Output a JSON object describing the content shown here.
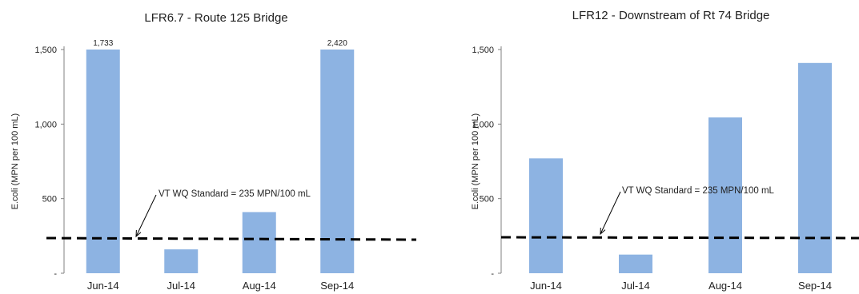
{
  "chart_data": [
    {
      "type": "bar",
      "title": "LFR6.7 - Route 125 Bridge",
      "ylabel": "E.coli (MPN per 100 mL)",
      "categories": [
        "Jun-14",
        "Jul-14",
        "Aug-14",
        "Sep-14"
      ],
      "values": [
        1733,
        160,
        410,
        2420
      ],
      "data_labels": [
        "1,733",
        "",
        "",
        "2,420"
      ],
      "ylim": [
        0,
        1500
      ],
      "yticks": [
        0,
        500,
        1000,
        1500
      ],
      "ytick_labels": [
        "-",
        "500",
        "1,000",
        "1,500"
      ],
      "standard": {
        "value": 235,
        "label": "VT WQ Standard = 235 MPN/100 mL"
      },
      "bar_color": "#8db3e2",
      "grid": false
    },
    {
      "type": "bar",
      "title": "LFR12 - Downstream of Rt 74 Bridge",
      "ylabel": "E.coli (MPN per 100 mL)",
      "categories": [
        "Jun-14",
        "Jul-14",
        "Aug-14",
        "Sep-14"
      ],
      "values": [
        770,
        125,
        1045,
        1410
      ],
      "data_labels": [
        "",
        "",
        "",
        ""
      ],
      "ylim": [
        0,
        1500
      ],
      "yticks": [
        0,
        500,
        1000,
        1500
      ],
      "ytick_labels": [
        "-",
        "500",
        "1,000",
        "1,500"
      ],
      "standard": {
        "value": 235,
        "label": "VT WQ Standard = 235 MPN/100 mL"
      },
      "bar_color": "#8db3e2",
      "grid": false
    }
  ]
}
